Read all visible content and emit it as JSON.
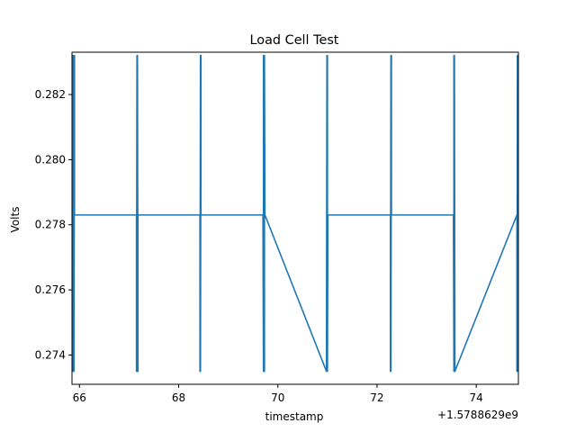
{
  "chart_data": {
    "type": "line",
    "title": "Load Cell Test",
    "xlabel": "timestamp",
    "ylabel": "Volts",
    "x_offset_label": "+1.5788629e9",
    "xlim": [
      65.85,
      74.85
    ],
    "ylim": [
      0.2731,
      0.2833
    ],
    "xticks": [
      66,
      68,
      70,
      72,
      74
    ],
    "yticks": [
      0.274,
      0.276,
      0.278,
      0.28,
      0.282
    ],
    "ytick_labels": [
      "0.274",
      "0.276",
      "0.278",
      "0.280",
      "0.282"
    ],
    "grid": false,
    "line_color": "#1f77b4",
    "series": [
      {
        "x": [
          65.87,
          65.87,
          65.87,
          65.88,
          65.89,
          65.9,
          65.9,
          67.15,
          67.15,
          67.16,
          67.17,
          67.17,
          67.18,
          67.18,
          68.43,
          68.43,
          68.44,
          68.44,
          68.45,
          68.45,
          69.7,
          69.71,
          69.71,
          69.72,
          69.72,
          69.73,
          69.73,
          69.74,
          70.98,
          70.99,
          70.99,
          71.0,
          71.0,
          71.01,
          72.27,
          72.27,
          72.28,
          72.28,
          72.29,
          72.29,
          73.54,
          73.55,
          73.55,
          73.56,
          73.56,
          73.57,
          74.82,
          74.82,
          74.83,
          74.83,
          74.84
        ],
        "y": [
          0.2735,
          0.2832,
          0.2735,
          0.2832,
          0.2735,
          0.2832,
          0.2783,
          0.2783,
          0.2735,
          0.2832,
          0.2735,
          0.2832,
          0.2735,
          0.2783,
          0.2783,
          0.2735,
          0.2832,
          0.2735,
          0.2832,
          0.2783,
          0.2783,
          0.2735,
          0.2832,
          0.2735,
          0.2832,
          0.2735,
          0.2832,
          0.2783,
          0.2735,
          0.2832,
          0.2735,
          0.2832,
          0.2735,
          0.2783,
          0.2783,
          0.2735,
          0.2832,
          0.2735,
          0.2832,
          0.2783,
          0.2783,
          0.2735,
          0.2832,
          0.2735,
          0.2832,
          0.2735,
          0.2783,
          0.2735,
          0.2832,
          0.2735,
          0.2832
        ]
      }
    ]
  }
}
